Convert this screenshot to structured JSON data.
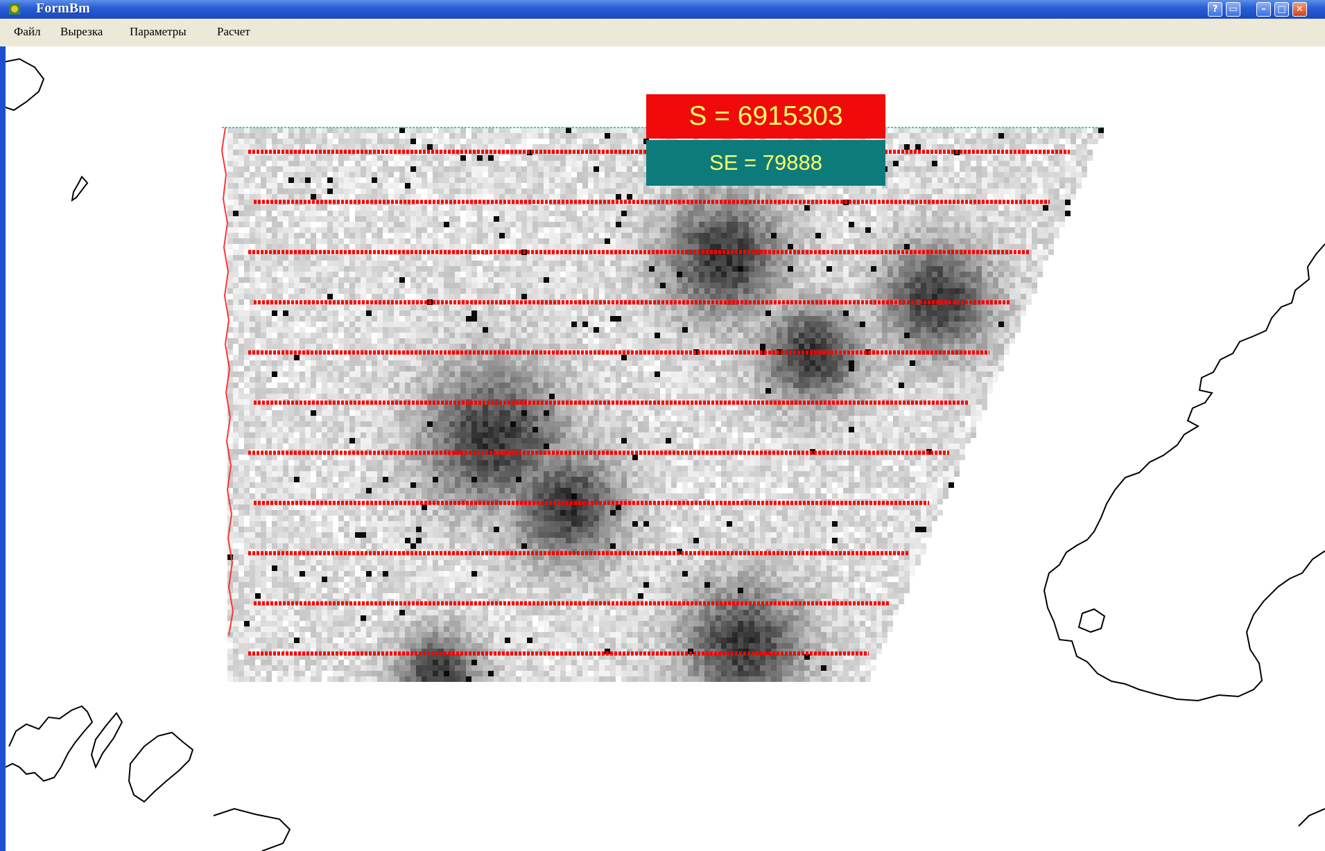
{
  "window": {
    "title": "FormBm",
    "buttons": [
      "help",
      "minimize",
      "maximize",
      "close"
    ]
  },
  "menu": [
    {
      "label": "Файл"
    },
    {
      "label": "Вырезка"
    },
    {
      "label": "Параметры"
    },
    {
      "label": "Расчет"
    }
  ],
  "readouts": {
    "s_label": "S = 6915303",
    "se_label": "SE = 79888"
  },
  "colors": {
    "title_bar": "#2a5fd6",
    "s_box": "#f10a0a",
    "se_box": "#0e7b7b",
    "readout_text": "#ffff66",
    "track_lines": "#ff0000",
    "coastline": "#000000"
  },
  "map": {
    "grid_shading": "grayscale density cells",
    "track_line_count": 11
  }
}
